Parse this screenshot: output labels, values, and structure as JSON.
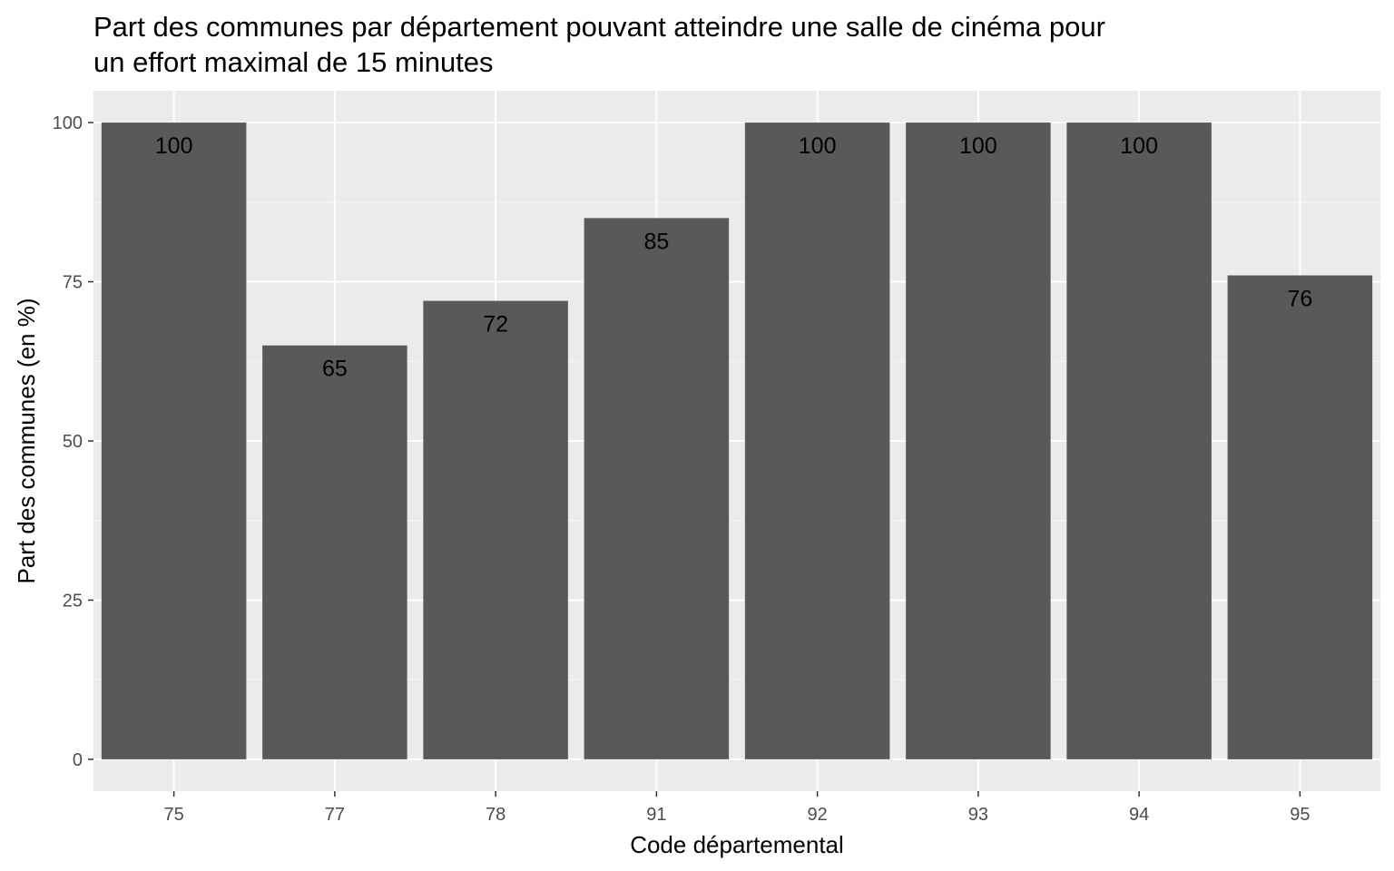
{
  "chart_data": {
    "type": "bar",
    "title_lines": [
      "Part des communes par département pouvant atteindre une salle de cinéma pour",
      "un effort maximal de 15 minutes"
    ],
    "xlabel": "Code départemental",
    "ylabel": "Part des communes (en %)",
    "categories": [
      "75",
      "77",
      "78",
      "91",
      "92",
      "93",
      "94",
      "95"
    ],
    "values": [
      100,
      65,
      72,
      85,
      100,
      100,
      100,
      76
    ],
    "data_labels": [
      "100",
      "65",
      "72",
      "85",
      "100",
      "100",
      "100",
      "76"
    ],
    "yticks": [
      0,
      25,
      50,
      75,
      100
    ],
    "ytick_labels": [
      "0",
      "25",
      "50",
      "75",
      "100"
    ],
    "ylim": [
      -5,
      105
    ],
    "grid": true,
    "legend": "none",
    "colors": {
      "panel_background": "#ebebeb",
      "grid_major": "#ffffff",
      "grid_minor": "#f7f7f7",
      "bar_fill": "#595959",
      "tick_text": "#4d4d4d"
    }
  }
}
